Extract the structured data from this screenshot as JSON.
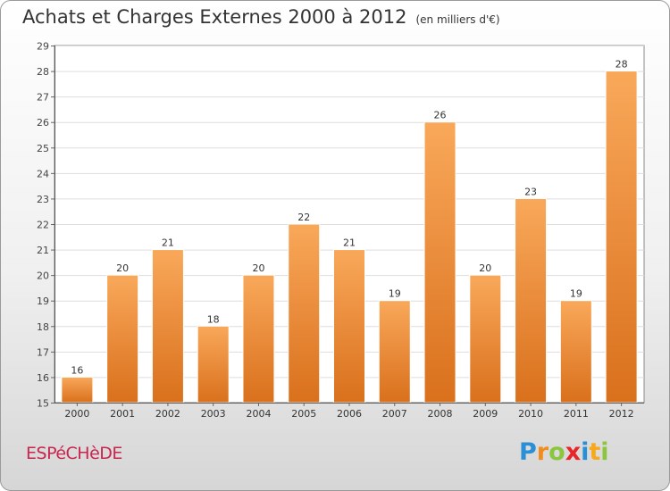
{
  "title": "Achats et Charges Externes 2000 à 2012",
  "subtitle": "(en milliers d'€)",
  "commune": "ESPéCHèDE",
  "logo": {
    "letters": [
      "P",
      "r",
      "o",
      "x",
      "i",
      "t",
      "i"
    ],
    "colors": [
      "#2a8fd6",
      "#f28c1c",
      "#8cc63f",
      "#e8262a",
      "#2a8fd6",
      "#f7a81b",
      "#8cc63f"
    ]
  },
  "colors": {
    "bar_light": "#f9a85a",
    "bar_dark": "#d9701c",
    "commune": "#c8254f"
  },
  "chart_data": {
    "type": "bar",
    "categories": [
      "2000",
      "2001",
      "2002",
      "2003",
      "2004",
      "2005",
      "2006",
      "2007",
      "2008",
      "2009",
      "2010",
      "2011",
      "2012"
    ],
    "values": [
      16,
      20,
      21,
      18,
      20,
      22,
      21,
      19,
      26,
      20,
      23,
      19,
      28
    ],
    "data_labels": [
      "16",
      "20",
      "21",
      "18",
      "20",
      "22",
      "21",
      "19",
      "26",
      "20",
      "23",
      "19",
      "28"
    ],
    "yticks": [
      15,
      16,
      17,
      18,
      19,
      20,
      21,
      22,
      23,
      24,
      25,
      26,
      27,
      28,
      29
    ],
    "ylim": [
      15,
      29
    ],
    "title": "Achats et Charges Externes 2000 à 2012",
    "xlabel": "",
    "ylabel": "",
    "grid": true
  }
}
